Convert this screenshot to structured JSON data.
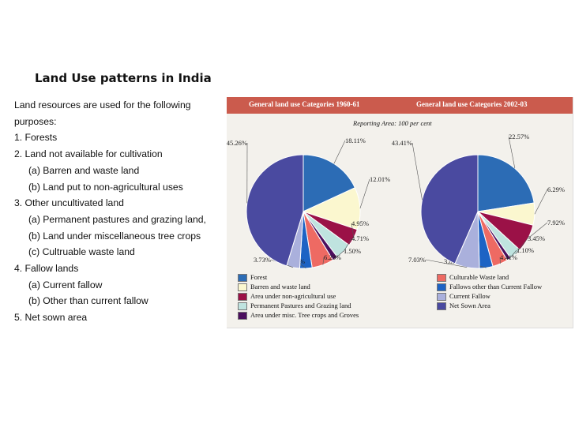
{
  "slide": {
    "title": "Land Use patterns in India",
    "intro_line1": "Land resources are used for the following",
    "intro_line2": "purposes:",
    "items": [
      {
        "text": "1. Forests",
        "sub": false
      },
      {
        "text": "2. Land not available for cultivation",
        "sub": false
      },
      {
        "text": "(a) Barren and waste land",
        "sub": true
      },
      {
        "text": "(b) Land put to non-agricultural uses",
        "sub": true
      },
      {
        "text": "3. Other uncultivated land",
        "sub": false
      },
      {
        "text": "(a) Permanent pastures and grazing land,",
        "sub": true
      },
      {
        "text": "(b) Land under miscellaneous tree crops",
        "sub": true
      },
      {
        "text": "(c) Cultruable waste land",
        "sub": true
      },
      {
        "text": "4. Fallow lands",
        "sub": false
      },
      {
        "text": "(a) Current fallow",
        "sub": true
      },
      {
        "text": "(b) Other than current fallow",
        "sub": true
      },
      {
        "text": "5. Net sown area",
        "sub": false
      }
    ]
  },
  "figure": {
    "header_left": "General land use Categories 1960-61",
    "header_right": "General land use Categories 2002-03",
    "reporting_area": "Reporting Area: 100 per cent"
  },
  "chart_data": [
    {
      "type": "pie",
      "title": "General land use Categories 1960-61",
      "categories": [
        "Forest",
        "Barren and waste land",
        "Area under non-agricultural use",
        "Permanent Pastures and Grazing land",
        "Area under misc. Tree crops and Groves",
        "Culturable Waste land",
        "Fallows other than Current Fallow",
        "Current Fallow",
        "Net Sown Area"
      ],
      "values": [
        18.11,
        12.01,
        4.95,
        4.71,
        1.5,
        6.23,
        3.5,
        3.73,
        45.26
      ],
      "labels": [
        "18.11%",
        "12.01%",
        "4.95%",
        "4.71%",
        "1.50%",
        "6.23%",
        "3.50%",
        "3.73%",
        "45.26%"
      ]
    },
    {
      "type": "pie",
      "title": "General land use Categories 2002-03",
      "categories": [
        "Forest",
        "Barren and waste land",
        "Area under non-agricultural use",
        "Permanent Pastures and Grazing land",
        "Area under misc. Tree crops and Groves",
        "Culturable Waste land",
        "Fallows other than Current Fallow",
        "Current Fallow",
        "Net Sown Area"
      ],
      "values": [
        22.57,
        6.29,
        7.92,
        3.45,
        1.1,
        4.41,
        3.82,
        7.03,
        43.41
      ],
      "labels": [
        "22.57%",
        "6.29%",
        "7.92%",
        "3.45%",
        "1.10%",
        "4.41%",
        "3.82%",
        "7.03%",
        "43.41%"
      ]
    }
  ],
  "legend": {
    "left": [
      {
        "label": "Forest",
        "color": "#2c6cb5"
      },
      {
        "label": "Barren and waste land",
        "color": "#fbf7cf"
      },
      {
        "label": "Area under non-agricultural use",
        "color": "#9b1147"
      },
      {
        "label": "Permanent Pastures and Grazing land",
        "color": "#bfe3df"
      },
      {
        "label": "Area under misc. Tree crops and Groves",
        "color": "#4b0f5e"
      }
    ],
    "right": [
      {
        "label": "Culturable Waste land",
        "color": "#ee6a63"
      },
      {
        "label": "Fallows other than Current Fallow",
        "color": "#1d63c4"
      },
      {
        "label": "Current Fallow",
        "color": "#aab0dc"
      },
      {
        "label": "Net Sown Area",
        "color": "#4a4aa0"
      }
    ]
  }
}
